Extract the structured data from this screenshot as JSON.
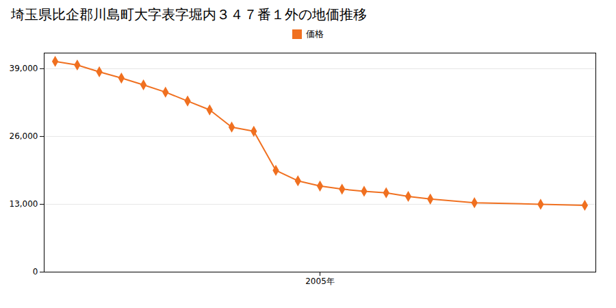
{
  "chart_data": {
    "type": "line",
    "title": "埼玉県比企郡川島町大字表字堀内３４７番１外の地価推移",
    "x": [
      1993,
      1994,
      1995,
      1996,
      1997,
      1998,
      1999,
      2000,
      2001,
      2002,
      2003,
      2004,
      2005,
      2006,
      2007,
      2008,
      2009,
      2010,
      2012,
      2015,
      2017
    ],
    "series": [
      {
        "name": "価格",
        "color": "#f07020",
        "marker": "diamond",
        "values": [
          40400,
          39700,
          38400,
          37200,
          35900,
          34500,
          32800,
          31100,
          27800,
          27000,
          19500,
          17500,
          16500,
          15900,
          15500,
          15200,
          14500,
          14000,
          13300,
          13000,
          12800
        ]
      }
    ],
    "xlim": [
      1992.5,
      2017.5
    ],
    "xticks": [
      {
        "value": 2005,
        "label": "2005年"
      }
    ],
    "ylim": [
      0,
      42000
    ],
    "yticks": [
      0,
      {
        "value": 13000,
        "label": "13,000"
      },
      {
        "value": 26000,
        "label": "26,000"
      },
      {
        "value": 39000,
        "label": "39,000"
      }
    ],
    "grid": "y",
    "legend": "top"
  }
}
